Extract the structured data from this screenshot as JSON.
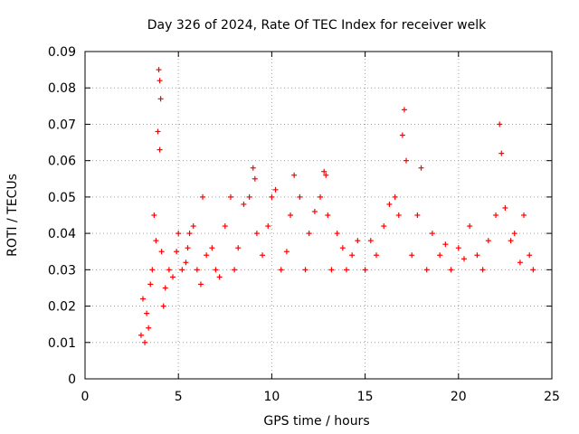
{
  "chart_data": {
    "type": "scatter",
    "title": "Day 326 of 2024, Rate Of TEC Index for receiver welk",
    "xlabel": "GPS time / hours",
    "ylabel": "ROTI / TECUs",
    "xlim": [
      0,
      25
    ],
    "ylim": [
      0,
      0.09
    ],
    "x_ticks": [
      "0",
      "5",
      "10",
      "15",
      "20",
      "25"
    ],
    "y_ticks": [
      "0",
      "0.01",
      "0.02",
      "0.03",
      "0.04",
      "0.05",
      "0.06",
      "0.07",
      "0.08",
      "0.09"
    ],
    "grid": true,
    "marker": "+",
    "color": "#ff0000",
    "series": [
      {
        "x": [
          3.0,
          3.1,
          3.2,
          3.3,
          3.4,
          3.5,
          3.6,
          3.7,
          3.8,
          3.9,
          3.95,
          4.0,
          4.0,
          4.05,
          4.1,
          4.2,
          4.3,
          4.5,
          4.7,
          4.9,
          5.0,
          5.2,
          5.4,
          5.5,
          5.6,
          5.8,
          6.0,
          6.2,
          6.3,
          6.5,
          6.8,
          7.0,
          7.2,
          7.5,
          7.8,
          8.0,
          8.2,
          8.5,
          8.8,
          9.0,
          9.1,
          9.2,
          9.5,
          9.8,
          10.0,
          10.2,
          10.5,
          10.8,
          11.0,
          11.2,
          11.5,
          11.8,
          12.0,
          12.3,
          12.6,
          12.8,
          12.9,
          13.0,
          13.2,
          13.5,
          13.8,
          14.0,
          14.3,
          14.6,
          15.0,
          15.3,
          15.6,
          16.0,
          16.3,
          16.6,
          16.8,
          17.0,
          17.1,
          17.2,
          17.5,
          17.8,
          18.0,
          18.3,
          18.6,
          19.0,
          19.3,
          19.6,
          20.0,
          20.3,
          20.6,
          21.0,
          21.3,
          21.6,
          22.0,
          22.2,
          22.3,
          22.5,
          22.8,
          23.0,
          23.3,
          23.5,
          23.8,
          24.0
        ],
        "y": [
          0.012,
          0.022,
          0.01,
          0.018,
          0.014,
          0.026,
          0.03,
          0.045,
          0.038,
          0.068,
          0.085,
          0.082,
          0.063,
          0.077,
          0.035,
          0.02,
          0.025,
          0.03,
          0.028,
          0.035,
          0.04,
          0.03,
          0.032,
          0.036,
          0.04,
          0.042,
          0.03,
          0.026,
          0.05,
          0.034,
          0.036,
          0.03,
          0.028,
          0.042,
          0.05,
          0.03,
          0.036,
          0.048,
          0.05,
          0.058,
          0.055,
          0.04,
          0.034,
          0.042,
          0.05,
          0.052,
          0.03,
          0.035,
          0.045,
          0.056,
          0.05,
          0.03,
          0.04,
          0.046,
          0.05,
          0.057,
          0.056,
          0.045,
          0.03,
          0.04,
          0.036,
          0.03,
          0.034,
          0.038,
          0.03,
          0.038,
          0.034,
          0.042,
          0.048,
          0.05,
          0.045,
          0.067,
          0.074,
          0.06,
          0.034,
          0.045,
          0.058,
          0.03,
          0.04,
          0.034,
          0.037,
          0.03,
          0.036,
          0.033,
          0.042,
          0.034,
          0.03,
          0.038,
          0.045,
          0.07,
          0.062,
          0.047,
          0.038,
          0.04,
          0.032,
          0.045,
          0.034,
          0.03
        ]
      }
    ]
  }
}
